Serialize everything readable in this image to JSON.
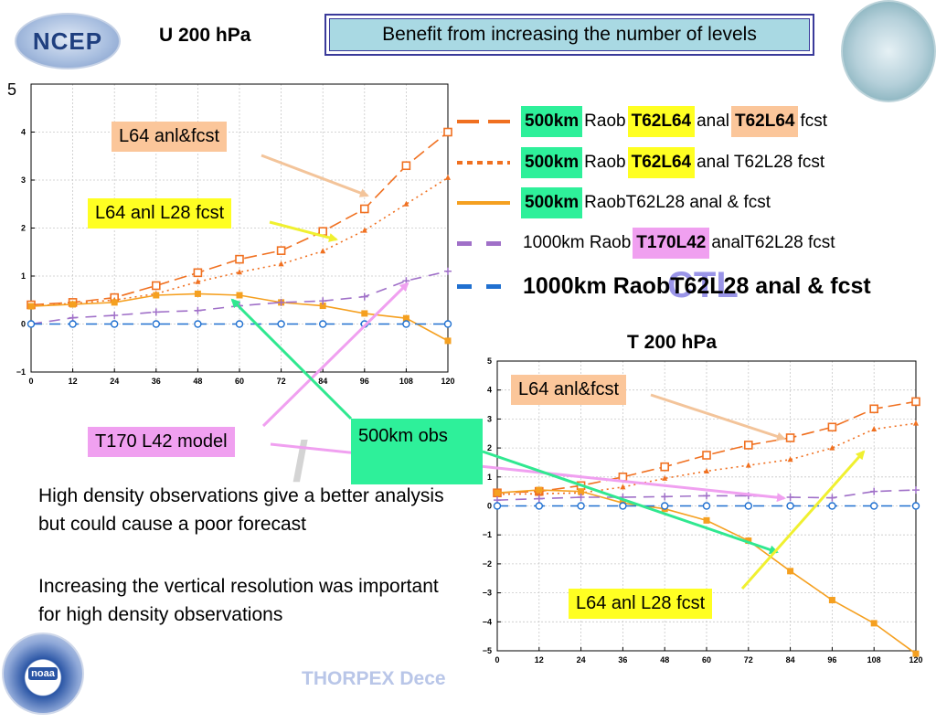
{
  "header": {
    "title_u": "U 200 hPa",
    "banner": "Benefit from increasing the number of levels",
    "title_t": "T 200 hPa",
    "u_axis_top_label": "5"
  },
  "logos": {
    "ncep": "NCEP",
    "noaa": "noaa"
  },
  "watermarks": {
    "ctl": "CTL",
    "footer": "THORPEX Dece",
    "slash": "/"
  },
  "legend": [
    {
      "color": "#f07020",
      "style": "long-dash",
      "parts": [
        {
          "text": "500km",
          "hl": "green"
        },
        {
          "text": " Raob ",
          "hl": "none"
        },
        {
          "text": "T62L64",
          "hl": "yellow"
        },
        {
          "text": " anal ",
          "hl": "none"
        },
        {
          "text": "T62L64",
          "hl": "peach"
        },
        {
          "text": " fcst",
          "hl": "none"
        }
      ]
    },
    {
      "color": "#f07020",
      "style": "dotted",
      "parts": [
        {
          "text": "500km",
          "hl": "green"
        },
        {
          "text": " Raob ",
          "hl": "none"
        },
        {
          "text": "T62L64",
          "hl": "yellow"
        },
        {
          "text": " anal T62L28 fcst",
          "hl": "none"
        }
      ]
    },
    {
      "color": "#f5a020",
      "style": "solid",
      "parts": [
        {
          "text": "500km",
          "hl": "green"
        },
        {
          "text": " RaobT62L28 anal & fcst",
          "hl": "none"
        }
      ]
    },
    {
      "color": "#a070c8",
      "style": "dash",
      "parts": [
        {
          "text": "1000km Raob",
          "hl": "none"
        },
        {
          "text": "T170L42",
          "hl": "pink"
        },
        {
          "text": " analT62L28 fcst",
          "hl": "none"
        }
      ]
    },
    {
      "color": "#2070d0",
      "style": "dash",
      "parts": [
        {
          "text": "1000km RaobT62L28 anal & fcst",
          "hl": "none"
        }
      ]
    }
  ],
  "callouts": {
    "u_l64": "L64 anl&fcst",
    "u_l64_l28": "L64 anl L28 fcst",
    "t170": "T170 L42 model",
    "obs500": "500km obs",
    "t_l64": "L64 anl&fcst",
    "t_l64_l28": "L64 anl L28 fcst"
  },
  "notes": [
    "High density observations give a better analysis but could cause a poor forecast",
    "Increasing the vertical resolution was important for high density observations"
  ],
  "colors": {
    "orange_l64": "#f07020",
    "orange_l28": "#f5a020",
    "purple": "#a070c8",
    "blue": "#2070d0",
    "arrow_peach": "#f3c49a",
    "arrow_yellow": "#f0f030",
    "arrow_pink": "#f0a0f0",
    "arrow_green": "#30e890"
  },
  "chart_data": [
    {
      "id": "u200",
      "type": "line",
      "title": "U 200 hPa",
      "x": [
        0,
        12,
        24,
        36,
        48,
        60,
        72,
        84,
        96,
        108,
        120
      ],
      "xlim": [
        0,
        120
      ],
      "ylim": [
        -1,
        5
      ],
      "yticks": [
        -1,
        0,
        1,
        2,
        3,
        4
      ],
      "grid": true,
      "series": [
        {
          "name": "500km Raob T62L64 anal T62L64 fcst",
          "color": "#f07020",
          "dash": "14,6",
          "marker": "square-open",
          "values": [
            0.4,
            0.45,
            0.55,
            0.8,
            1.07,
            1.35,
            1.53,
            1.93,
            2.4,
            3.3,
            4.0
          ]
        },
        {
          "name": "500km Raob T62L64 anal T62L28 fcst",
          "color": "#f07020",
          "dash": "2,4",
          "marker": "triangle",
          "values": [
            0.37,
            0.43,
            0.5,
            0.63,
            0.88,
            1.08,
            1.25,
            1.52,
            1.95,
            2.5,
            3.05
          ]
        },
        {
          "name": "500km RaobT62L28 anal & fcst",
          "color": "#f5a020",
          "dash": "",
          "marker": "square",
          "values": [
            0.37,
            0.41,
            0.45,
            0.6,
            0.63,
            0.6,
            0.45,
            0.38,
            0.22,
            0.12,
            -0.35
          ]
        },
        {
          "name": "1000km RaobT170L42 analT62L28 fcst",
          "color": "#a070c8",
          "dash": "12,8",
          "marker": "plus",
          "values": [
            0.0,
            0.13,
            0.18,
            0.25,
            0.28,
            0.38,
            0.45,
            0.48,
            0.57,
            0.9,
            1.1
          ]
        },
        {
          "name": "1000km RaobT62L28 anal & fcst",
          "color": "#2070d0",
          "dash": "12,8",
          "marker": "circle-open",
          "values": [
            0,
            0,
            0,
            0,
            0,
            0,
            0,
            0,
            0,
            0,
            0
          ]
        }
      ]
    },
    {
      "id": "t200",
      "type": "line",
      "title": "T 200 hPa",
      "x": [
        0,
        12,
        24,
        36,
        48,
        60,
        72,
        84,
        96,
        108,
        120
      ],
      "xlim": [
        0,
        120
      ],
      "ylim": [
        -5,
        5
      ],
      "yticks": [
        -5,
        -4,
        -3,
        -2,
        -1,
        0,
        1,
        2,
        3,
        4,
        5
      ],
      "grid": true,
      "series": [
        {
          "name": "500km Raob T62L64 anal T62L64 fcst",
          "color": "#f07020",
          "dash": "14,6",
          "marker": "square-open",
          "values": [
            0.45,
            0.5,
            0.7,
            1.0,
            1.35,
            1.75,
            2.1,
            2.35,
            2.72,
            3.35,
            3.6
          ]
        },
        {
          "name": "500km Raob T62L64 anal T62L28 fcst",
          "color": "#f07020",
          "dash": "2,4",
          "marker": "triangle",
          "values": [
            0.4,
            0.42,
            0.45,
            0.65,
            0.95,
            1.2,
            1.4,
            1.6,
            2.0,
            2.65,
            2.85
          ]
        },
        {
          "name": "500km RaobT62L28 anal & fcst",
          "color": "#f5a020",
          "dash": "",
          "marker": "square",
          "values": [
            0.45,
            0.55,
            0.5,
            0.1,
            -0.1,
            -0.5,
            -1.2,
            -2.25,
            -3.25,
            -4.05,
            -5.1
          ]
        },
        {
          "name": "1000km RaobT170L42 analT62L28 fcst",
          "color": "#a070c8",
          "dash": "12,8",
          "marker": "plus",
          "values": [
            0.2,
            0.25,
            0.3,
            0.3,
            0.32,
            0.35,
            0.35,
            0.3,
            0.28,
            0.5,
            0.55
          ]
        },
        {
          "name": "1000km RaobT62L28 anal & fcst",
          "color": "#2070d0",
          "dash": "12,8",
          "marker": "circle-open",
          "values": [
            0,
            0,
            0,
            0,
            0,
            0,
            0,
            0,
            0,
            0,
            0
          ]
        }
      ]
    }
  ]
}
